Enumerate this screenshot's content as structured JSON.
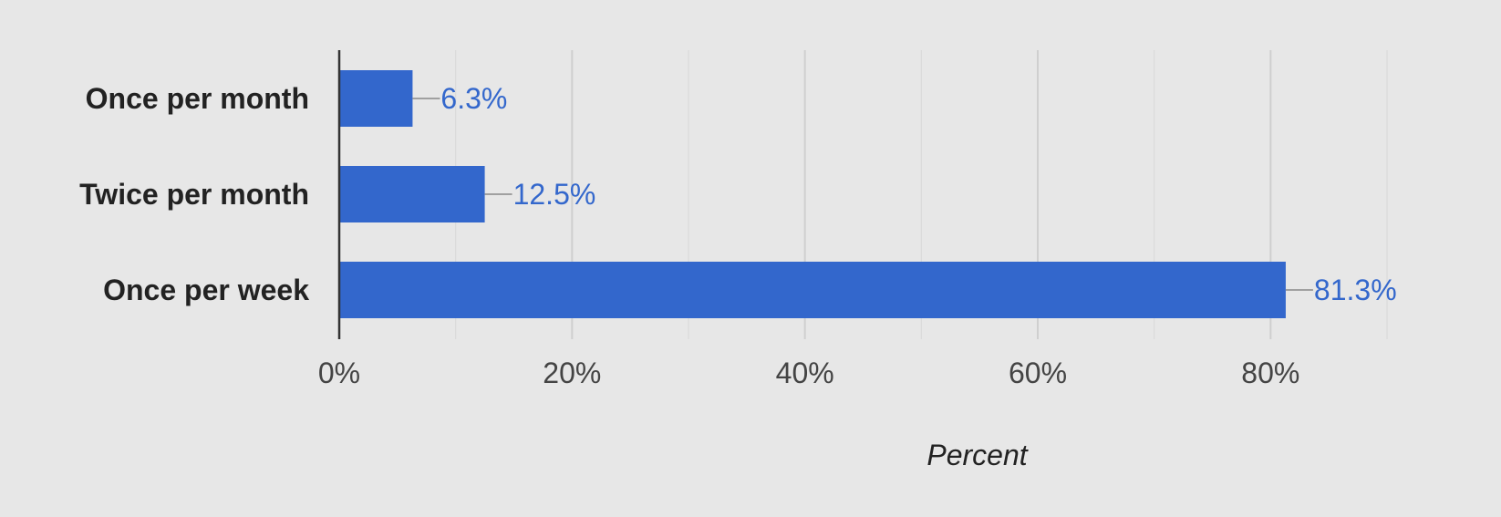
{
  "chart_data": {
    "type": "bar",
    "orientation": "horizontal",
    "categories": [
      "Once per month",
      "Twice per month",
      "Once per week"
    ],
    "values": [
      6.3,
      12.5,
      81.3
    ],
    "value_labels": [
      "6.3%",
      "12.5%",
      "81.3%"
    ],
    "xlabel": "Percent",
    "ylabel": "",
    "xlim": [
      0,
      90
    ],
    "x_ticks": [
      0,
      20,
      40,
      60,
      80
    ],
    "x_tick_labels": [
      "0%",
      "20%",
      "40%",
      "60%",
      "80%"
    ],
    "grid": true,
    "legend": "none",
    "colors": {
      "bar": "#3367cc",
      "label": "#3367cc",
      "leader": "#a0a0a0",
      "grid_major": "#cfcfcf",
      "grid_minor": "#dadada",
      "axis": "#333333",
      "background": "#e7e7e7"
    }
  }
}
